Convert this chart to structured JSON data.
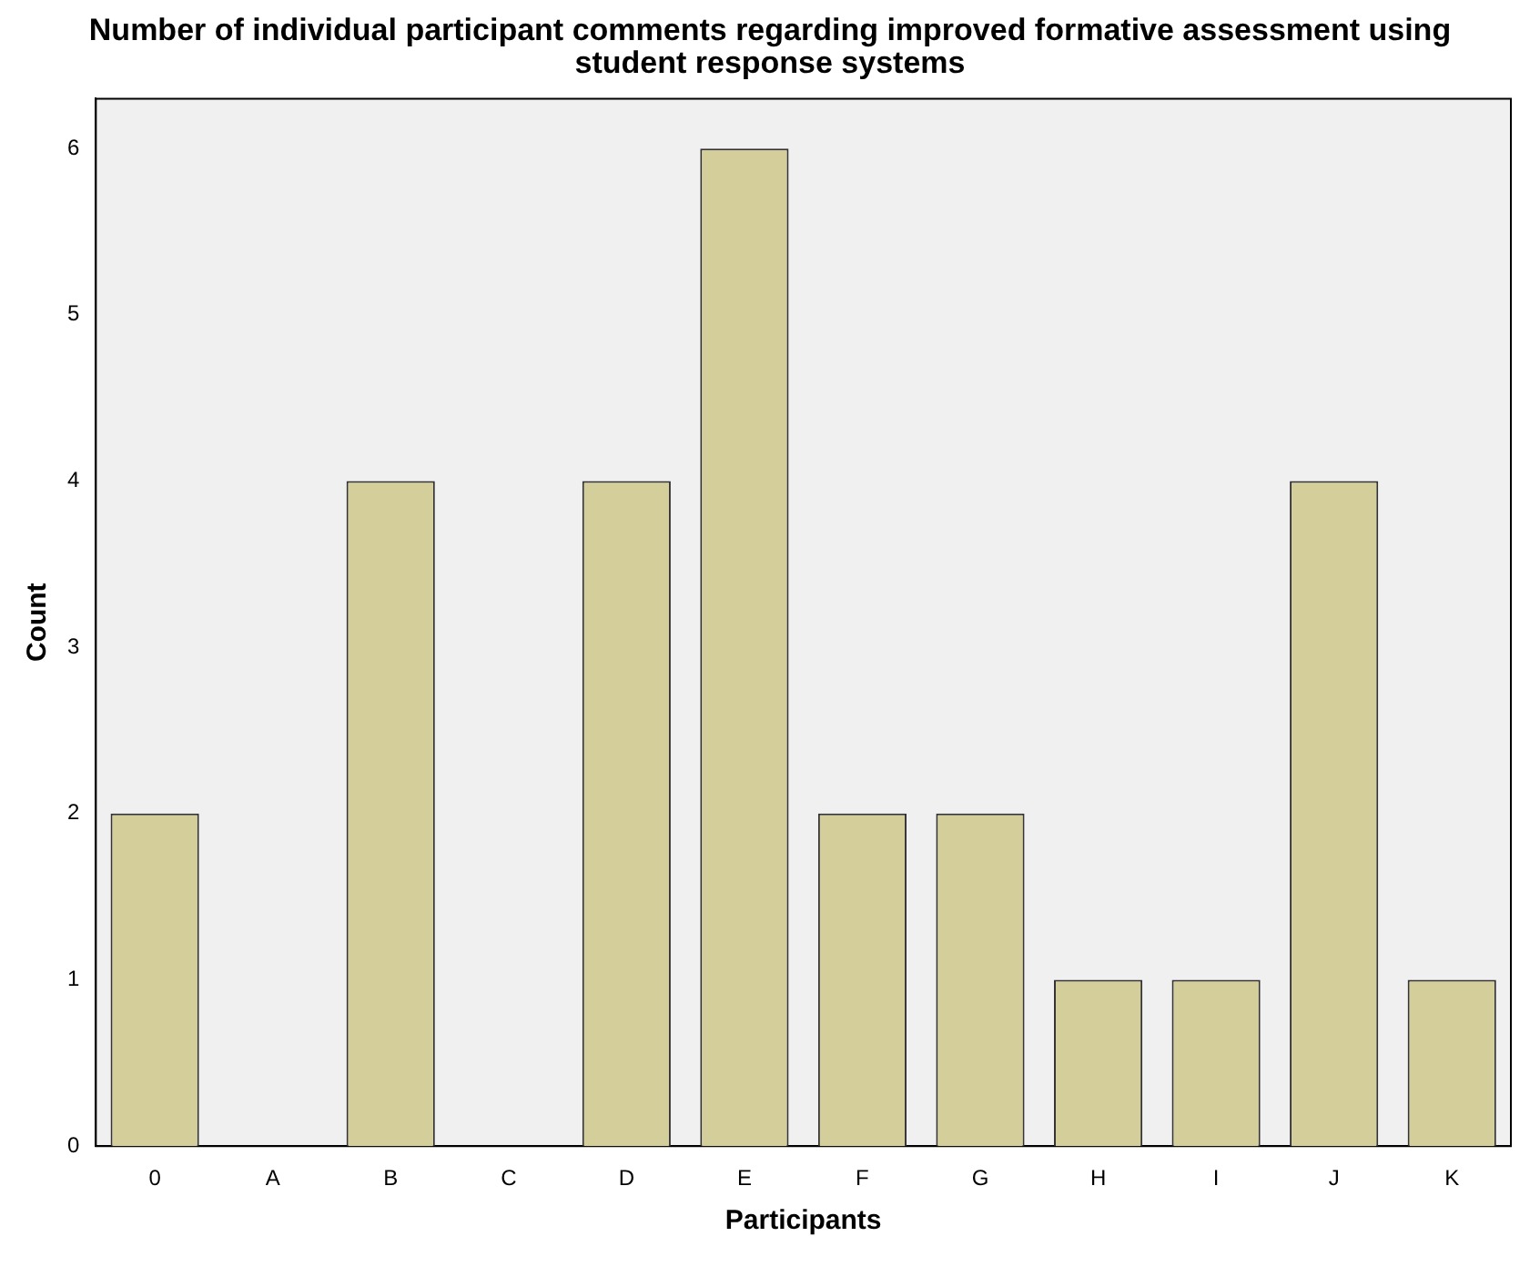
{
  "chart_data": {
    "type": "bar",
    "title": "Number of individual participant comments regarding improved formative assessment using student response systems",
    "xlabel": "Participants",
    "ylabel": "Count",
    "categories": [
      "0",
      "A",
      "B",
      "C",
      "D",
      "E",
      "F",
      "G",
      "H",
      "I",
      "J",
      "K"
    ],
    "values": [
      2,
      0,
      4,
      0,
      4,
      6,
      2,
      2,
      1,
      1,
      4,
      1
    ],
    "color": "#d4ce9a",
    "ylim": [
      0,
      6.3
    ],
    "yticks": [
      0,
      1,
      2,
      3,
      4,
      5,
      6
    ],
    "grid": false,
    "legend": false
  }
}
